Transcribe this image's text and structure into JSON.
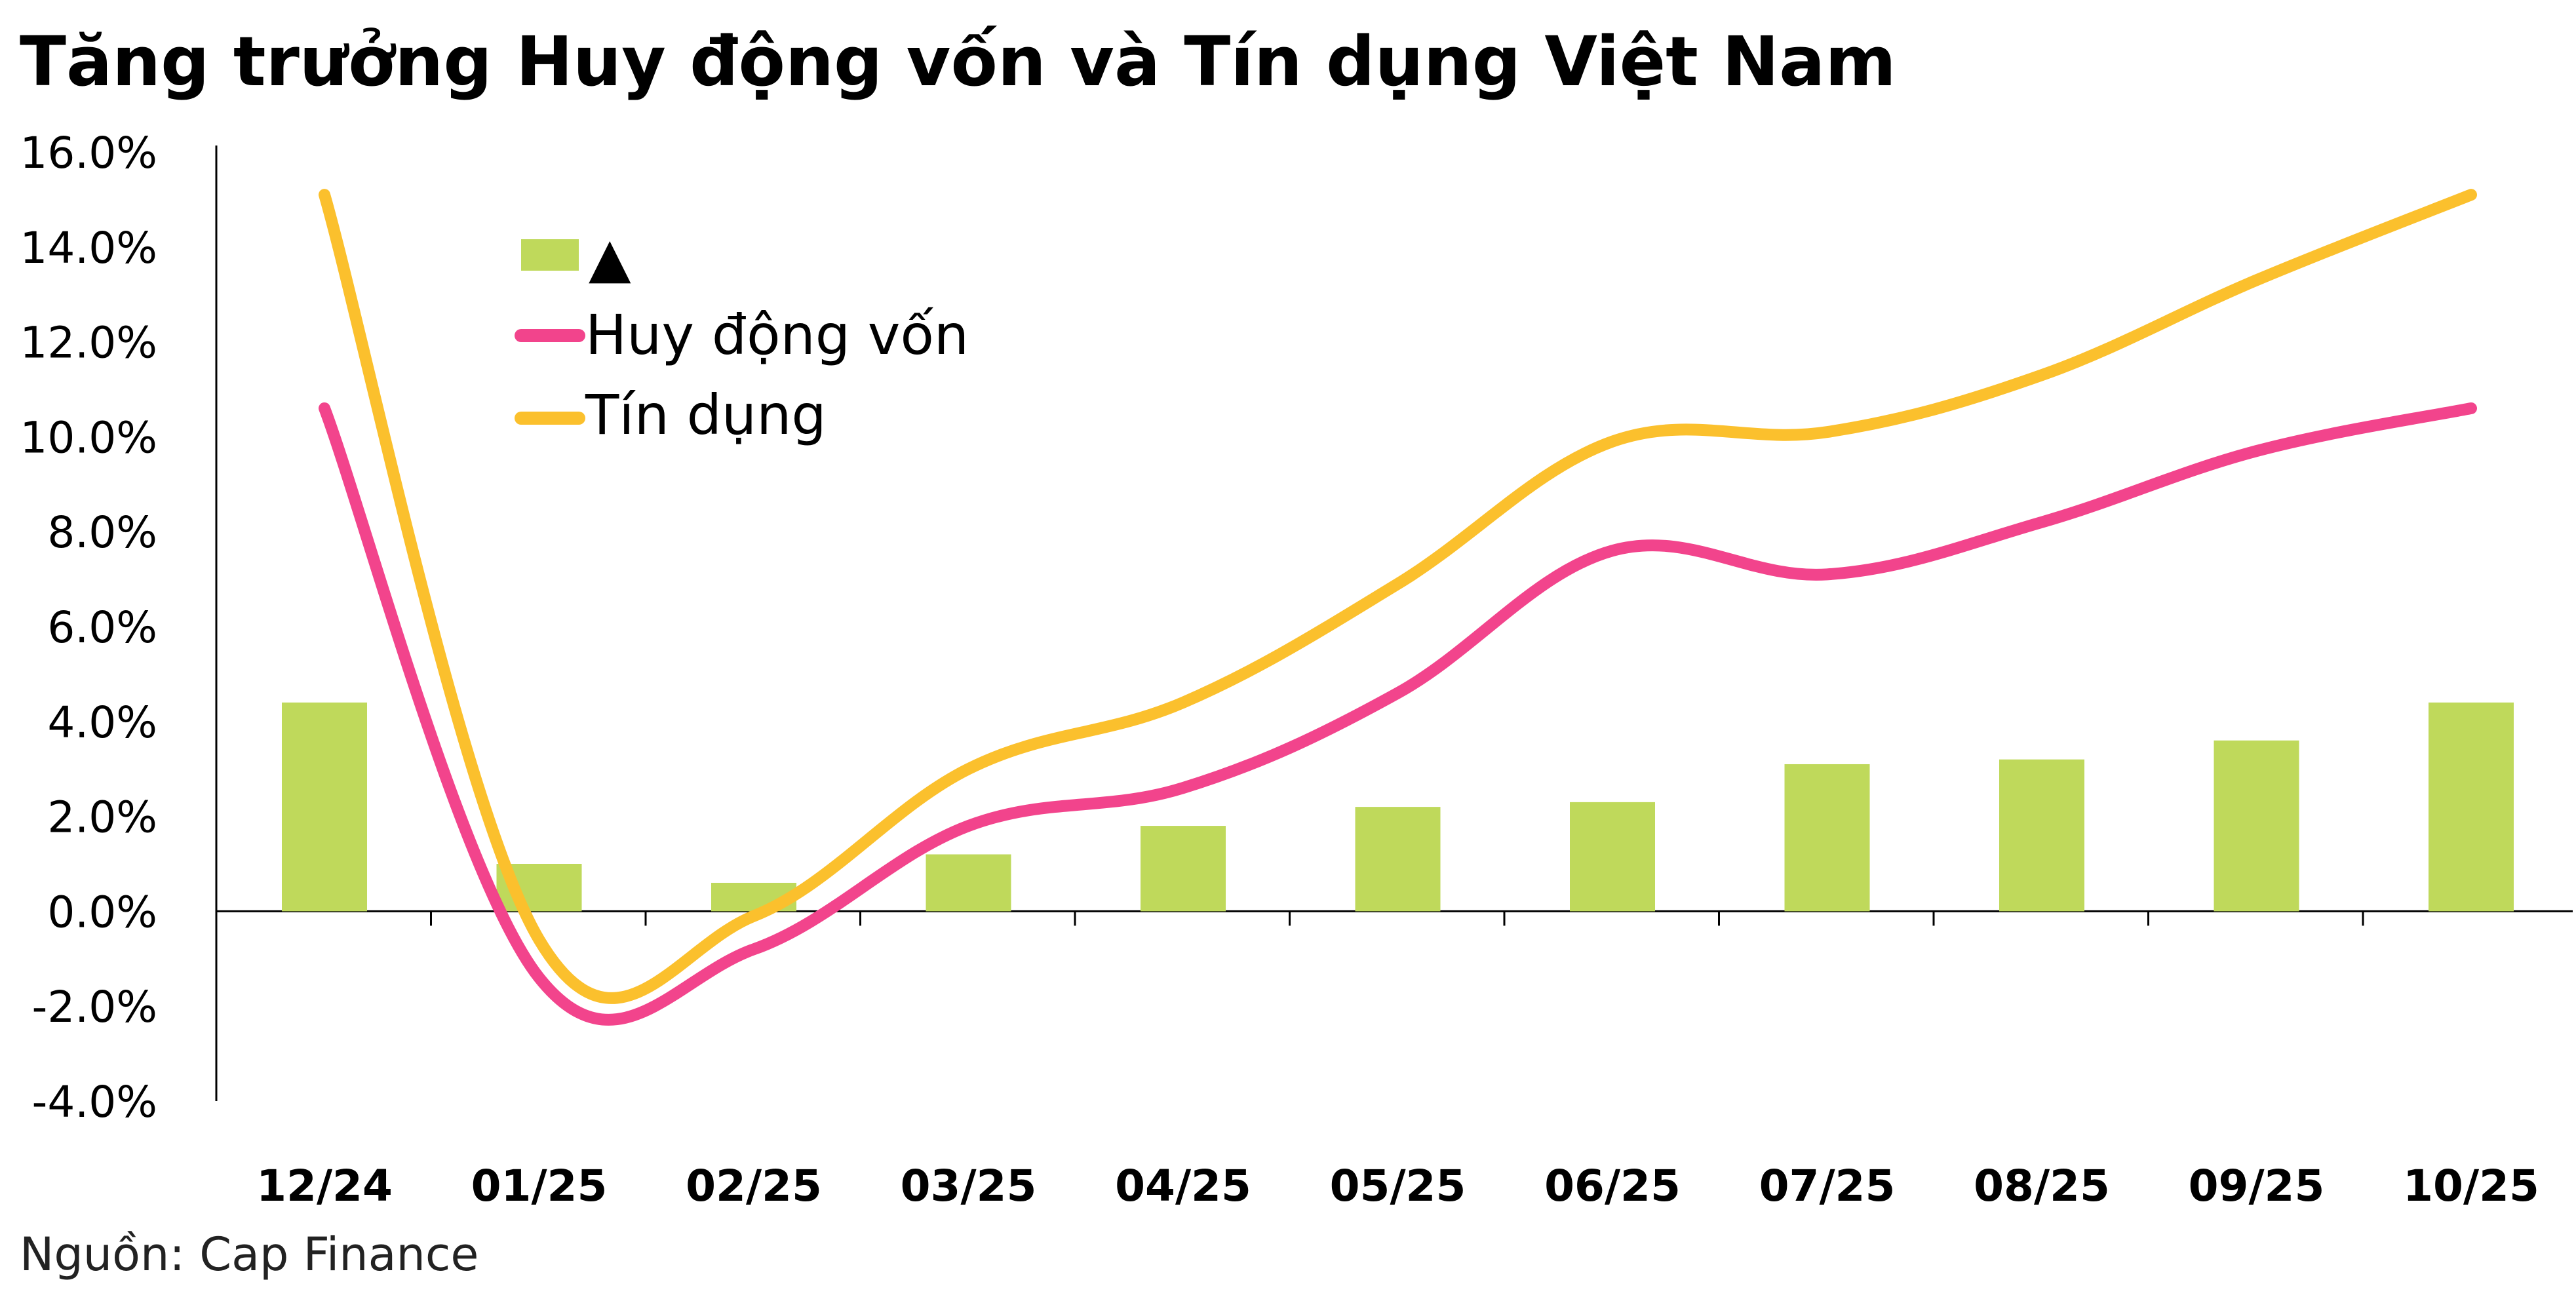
{
  "chart_data": {
    "type": "bar+line",
    "title": "Tăng trưởng Huy động vốn và Tín dụng Việt Nam",
    "source": "Nguồn: Cap Finance",
    "categories": [
      "12/24",
      "01/25",
      "02/25",
      "03/25",
      "04/25",
      "05/25",
      "06/25",
      "07/25",
      "08/25",
      "09/25",
      "10/25"
    ],
    "bars": {
      "name": "▲",
      "color": "#bfd95b",
      "values": [
        4.4,
        1.0,
        0.6,
        1.2,
        1.8,
        2.2,
        2.3,
        3.1,
        3.2,
        3.6,
        4.4
      ]
    },
    "series": [
      {
        "name": "Huy động vốn",
        "color": "#f2448c",
        "values": [
          10.6,
          -1.4,
          -0.8,
          1.8,
          2.6,
          4.6,
          7.6,
          7.1,
          8.2,
          9.7,
          10.6
        ]
      },
      {
        "name": "Tín dụng",
        "color": "#fbc02d",
        "values": [
          15.1,
          -0.6,
          -0.1,
          3.0,
          4.4,
          6.9,
          9.9,
          10.1,
          11.3,
          13.3,
          15.1
        ]
      }
    ],
    "ylim": [
      -4,
      16
    ],
    "yticks": [
      "16.0%",
      "14.0%",
      "12.0%",
      "10.0%",
      "8.0%",
      "6.0%",
      "4.0%",
      "2.0%",
      "0.0%",
      "-2.0%",
      "-4.0%"
    ],
    "ytick_values": [
      16,
      14,
      12,
      10,
      8,
      6,
      4,
      2,
      0,
      -2,
      -4
    ],
    "grid": false,
    "legend_position": "top-left"
  }
}
